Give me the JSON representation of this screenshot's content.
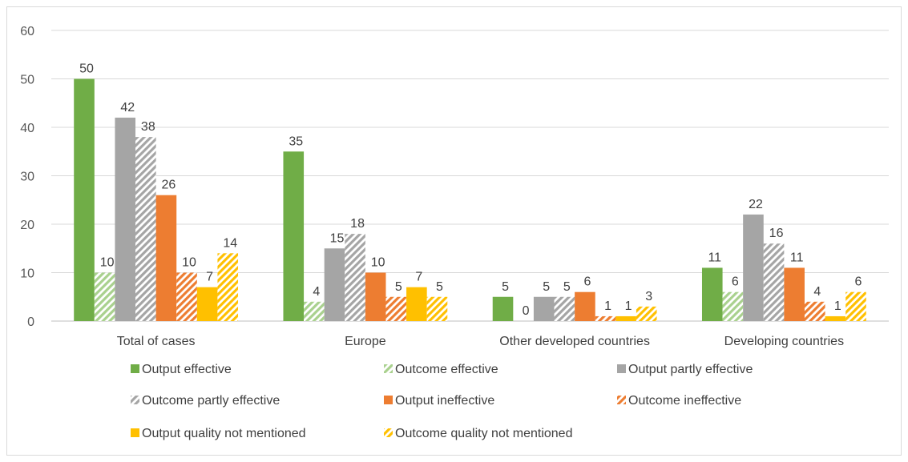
{
  "chart_data": {
    "type": "bar",
    "categories": [
      "Total of cases",
      "Europe",
      "Other developed countries",
      "Developing countries"
    ],
    "ylim": [
      0,
      60
    ],
    "yticks": [
      0,
      10,
      20,
      30,
      40,
      50,
      60
    ],
    "grid": true,
    "legend_position": "bottom",
    "series": [
      {
        "name": "Output effective",
        "values": [
          50,
          35,
          5,
          11
        ],
        "color": "#70ad47",
        "pattern": "solid"
      },
      {
        "name": "Outcome effective",
        "values": [
          10,
          4,
          0,
          6
        ],
        "color": "#a9d18e",
        "pattern": "hatched"
      },
      {
        "name": "Output partly effective",
        "values": [
          42,
          15,
          5,
          22
        ],
        "color": "#a5a5a5",
        "pattern": "solid"
      },
      {
        "name": "Outcome partly effective",
        "values": [
          38,
          18,
          5,
          16
        ],
        "color": "#a5a5a5",
        "pattern": "hatched"
      },
      {
        "name": "Output ineffective",
        "values": [
          26,
          10,
          6,
          11
        ],
        "color": "#ed7d31",
        "pattern": "solid"
      },
      {
        "name": "Outcome ineffective",
        "values": [
          10,
          5,
          1,
          4
        ],
        "color": "#ed7d31",
        "pattern": "hatched"
      },
      {
        "name": "Output quality not mentioned",
        "values": [
          7,
          7,
          1,
          1
        ],
        "color": "#ffc000",
        "pattern": "solid"
      },
      {
        "name": "Outcome quality not mentioned",
        "values": [
          14,
          5,
          3,
          6
        ],
        "color": "#ffc000",
        "pattern": "hatched"
      }
    ]
  }
}
